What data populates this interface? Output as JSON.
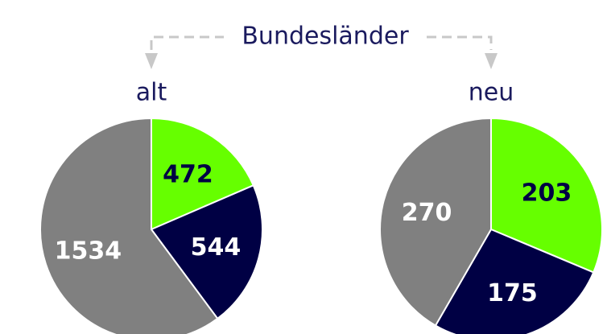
{
  "header": "Bundesländer",
  "chart_data": [
    {
      "type": "pie",
      "title": "alt",
      "values": [
        472,
        544,
        1534
      ],
      "colors": [
        "#66ff00",
        "#000044",
        "#808080"
      ]
    },
    {
      "type": "pie",
      "title": "neu",
      "values": [
        203,
        175,
        270
      ],
      "colors": [
        "#66ff00",
        "#000044",
        "#808080"
      ]
    }
  ]
}
